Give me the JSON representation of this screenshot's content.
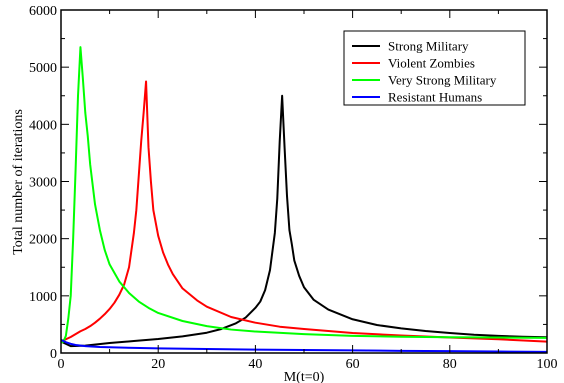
{
  "chart_data": {
    "type": "line",
    "title": "",
    "xlabel": "M(t=0)",
    "ylabel": "Total number of iterations",
    "xlim": [
      0,
      100
    ],
    "ylim": [
      0,
      6000
    ],
    "x_ticks": [
      0,
      20,
      40,
      60,
      80,
      100
    ],
    "y_ticks": [
      0,
      1000,
      2000,
      3000,
      4000,
      5000,
      6000
    ],
    "grid": false,
    "legend_position": "top-right",
    "series": [
      {
        "name": "Strong Military",
        "color": "#000000",
        "x": [
          0,
          2,
          5,
          10,
          15,
          20,
          25,
          30,
          33,
          36,
          38,
          40,
          41,
          42,
          43,
          44,
          44.5,
          45,
          45.5,
          46,
          46.5,
          47,
          47.5,
          48,
          49,
          50,
          52,
          55,
          60,
          65,
          70,
          75,
          80,
          85,
          90,
          95,
          100
        ],
        "y": [
          200,
          120,
          130,
          175,
          210,
          245,
          290,
          355,
          420,
          520,
          620,
          790,
          900,
          1100,
          1450,
          2100,
          2700,
          3700,
          4500,
          3600,
          2750,
          2150,
          1900,
          1620,
          1350,
          1150,
          930,
          760,
          590,
          490,
          430,
          385,
          350,
          320,
          300,
          285,
          275
        ]
      },
      {
        "name": "Violent Zombies",
        "color": "#ff0000",
        "x": [
          0,
          1,
          2,
          3,
          4,
          5,
          6,
          7,
          8,
          9,
          10,
          11,
          12,
          13,
          14,
          15,
          15.5,
          16,
          16.5,
          17,
          17.5,
          18,
          18.5,
          19,
          20,
          21,
          22,
          23,
          25,
          28,
          30,
          35,
          40,
          45,
          50,
          60,
          70,
          80,
          90,
          100
        ],
        "y": [
          210,
          240,
          280,
          330,
          380,
          420,
          470,
          530,
          600,
          680,
          770,
          880,
          1020,
          1200,
          1500,
          2100,
          2500,
          3100,
          3700,
          4200,
          4750,
          3600,
          3000,
          2500,
          2050,
          1760,
          1550,
          1380,
          1130,
          920,
          810,
          630,
          530,
          460,
          420,
          350,
          305,
          270,
          240,
          200
        ]
      },
      {
        "name": "Very Strong Military",
        "color": "#00ff00",
        "x": [
          0,
          0.5,
          1,
          1.5,
          2,
          2.5,
          3,
          3.5,
          4,
          4.5,
          5,
          5.5,
          6,
          7,
          8,
          9,
          10,
          12,
          14,
          16,
          18,
          20,
          25,
          30,
          35,
          40,
          50,
          60,
          70,
          80,
          90,
          100
        ],
        "y": [
          180,
          200,
          300,
          600,
          1000,
          2000,
          3200,
          4500,
          5350,
          4800,
          4200,
          3800,
          3300,
          2600,
          2150,
          1800,
          1550,
          1250,
          1050,
          900,
          790,
          700,
          560,
          470,
          410,
          375,
          330,
          300,
          285,
          275,
          270,
          265
        ]
      },
      {
        "name": "Resistant Humans",
        "color": "#0000ff",
        "x": [
          0,
          1,
          2,
          3,
          5,
          8,
          10,
          15,
          20,
          30,
          40,
          50,
          60,
          70,
          80,
          90,
          100
        ],
        "y": [
          230,
          190,
          160,
          140,
          120,
          105,
          100,
          90,
          80,
          70,
          60,
          52,
          45,
          38,
          32,
          26,
          20
        ]
      }
    ]
  }
}
